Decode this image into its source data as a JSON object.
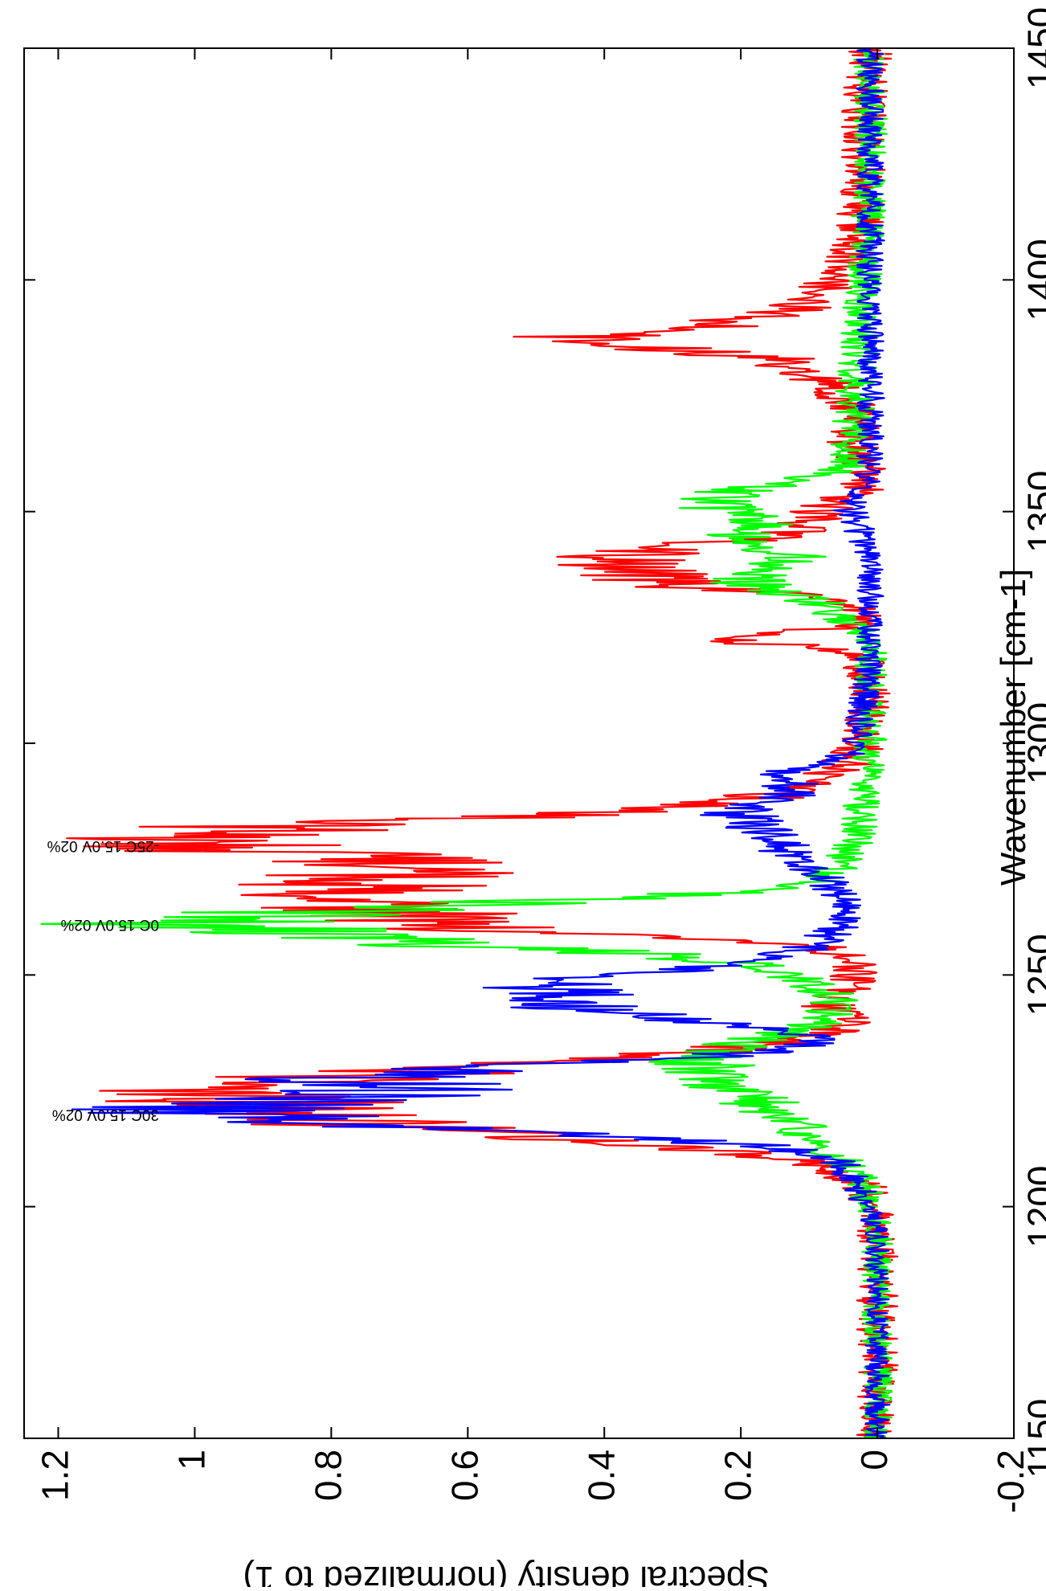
{
  "chart_data": {
    "type": "line",
    "orientation": "rotated-90",
    "title": "",
    "xlabel": "Wavenumber [cm-1]",
    "ylabel": "Spectral density (normalized to 1)",
    "xlim": [
      1150,
      1450
    ],
    "ylim": [
      -0.2,
      1.25
    ],
    "x_ticks": [
      1150,
      1200,
      1250,
      1300,
      1350,
      1400,
      1450
    ],
    "x_tick_labels": [
      "1150",
      "1200",
      "1250",
      "1300",
      "1350",
      "1400",
      "1450"
    ],
    "y_ticks": [
      -0.2,
      0,
      0.2,
      0.4,
      0.6,
      0.8,
      1,
      1.2
    ],
    "y_tick_labels": [
      "-0.2",
      "0",
      "0.2",
      "0.4",
      "0.6",
      "0.8",
      "1",
      "1.2"
    ],
    "grid": false,
    "series": [
      {
        "color": "#ff0000",
        "noise": 0.03,
        "x": [
          1150,
          1195,
          1205,
          1210,
          1213,
          1216,
          1218,
          1220,
          1222,
          1225,
          1228,
          1230,
          1233,
          1236,
          1240,
          1244,
          1248,
          1252,
          1256,
          1258,
          1260,
          1262,
          1264,
          1266,
          1268,
          1270,
          1272,
          1274,
          1276,
          1278,
          1280,
          1282,
          1284,
          1286,
          1288,
          1291,
          1295,
          1300,
          1310,
          1318,
          1320,
          1322,
          1324,
          1326,
          1328,
          1332,
          1334,
          1336,
          1338,
          1340,
          1342,
          1345,
          1348,
          1351,
          1352,
          1355,
          1360,
          1365,
          1370,
          1375,
          1380,
          1383,
          1385,
          1387,
          1389,
          1391,
          1393,
          1395,
          1398,
          1400,
          1405,
          1410,
          1420,
          1430,
          1440,
          1450
        ],
        "y": [
          0,
          0,
          0.02,
          0.1,
          0.3,
          0.6,
          0.78,
          0.85,
          0.9,
          0.92,
          0.82,
          0.55,
          0.3,
          0.1,
          0.04,
          0.08,
          0.04,
          0.03,
          0.08,
          0.25,
          0.58,
          0.7,
          0.72,
          0.75,
          0.77,
          0.75,
          0.72,
          0.73,
          0.82,
          1.0,
          0.98,
          0.92,
          0.55,
          0.3,
          0.18,
          0.1,
          0.05,
          0.02,
          0.01,
          0.02,
          0.05,
          0.2,
          0.12,
          0.03,
          0.02,
          0.1,
          0.3,
          0.35,
          0.37,
          0.4,
          0.32,
          0.15,
          0.1,
          0.08,
          0.06,
          0.02,
          0.02,
          0.04,
          0.03,
          0.05,
          0.1,
          0.15,
          0.3,
          0.5,
          0.28,
          0.22,
          0.15,
          0.1,
          0.08,
          0.06,
          0.04,
          0.03,
          0.02,
          0.02,
          0.02,
          0.01
        ]
      },
      {
        "color": "#00ff00",
        "noise": 0.022,
        "x": [
          1150,
          1195,
          1205,
          1210,
          1215,
          1220,
          1225,
          1228,
          1231,
          1234,
          1237,
          1240,
          1245,
          1250,
          1253,
          1255,
          1257,
          1259,
          1261,
          1262,
          1264,
          1266,
          1268,
          1270,
          1274,
          1280,
          1290,
          1300,
          1320,
          1325,
          1330,
          1333,
          1336,
          1338,
          1340,
          1342,
          1345,
          1348,
          1350,
          1352,
          1354,
          1355,
          1357,
          1360,
          1380,
          1400,
          1420,
          1450
        ],
        "y": [
          0,
          0,
          0.02,
          0.05,
          0.1,
          0.15,
          0.2,
          0.25,
          0.26,
          0.24,
          0.15,
          0.08,
          0.06,
          0.12,
          0.22,
          0.4,
          0.7,
          0.85,
          1.0,
          0.93,
          0.8,
          0.5,
          0.2,
          0.08,
          0.05,
          0.03,
          0.02,
          0.01,
          0.01,
          0.03,
          0.08,
          0.16,
          0.2,
          0.16,
          0.12,
          0.16,
          0.2,
          0.18,
          0.22,
          0.25,
          0.22,
          0.2,
          0.1,
          0.04,
          0.03,
          0.02,
          0.01,
          0.01
        ]
      },
      {
        "color": "#0000ff",
        "noise": 0.018,
        "x": [
          1150,
          1195,
          1205,
          1210,
          1213,
          1216,
          1218,
          1220,
          1222,
          1224,
          1226,
          1228,
          1230,
          1232,
          1234,
          1236,
          1238,
          1240,
          1242,
          1244,
          1246,
          1248,
          1250,
          1252,
          1256,
          1260,
          1265,
          1270,
          1274,
          1278,
          1282,
          1284,
          1286,
          1288,
          1290,
          1292,
          1294,
          1296,
          1300,
          1310,
          1320,
          1340,
          1350,
          1355,
          1360,
          1400,
          1450
        ],
        "y": [
          0,
          0,
          0.03,
          0.06,
          0.15,
          0.5,
          0.85,
          0.98,
          0.95,
          0.72,
          0.7,
          0.78,
          0.55,
          0.3,
          0.12,
          0.08,
          0.12,
          0.25,
          0.4,
          0.45,
          0.47,
          0.46,
          0.38,
          0.22,
          0.1,
          0.06,
          0.05,
          0.07,
          0.1,
          0.14,
          0.18,
          0.2,
          0.2,
          0.15,
          0.12,
          0.14,
          0.12,
          0.06,
          0.03,
          0.02,
          0.01,
          0.01,
          0.04,
          0.02,
          0.01,
          0.01,
          0.01
        ]
      }
    ],
    "annotations": [
      {
        "text": "30C 15.0V 02%",
        "x": 1220
      },
      {
        "text": "0C 15.0V 02%",
        "x": 1261
      },
      {
        "text": "-25C 15.0V 02%",
        "x": 1278
      }
    ]
  }
}
